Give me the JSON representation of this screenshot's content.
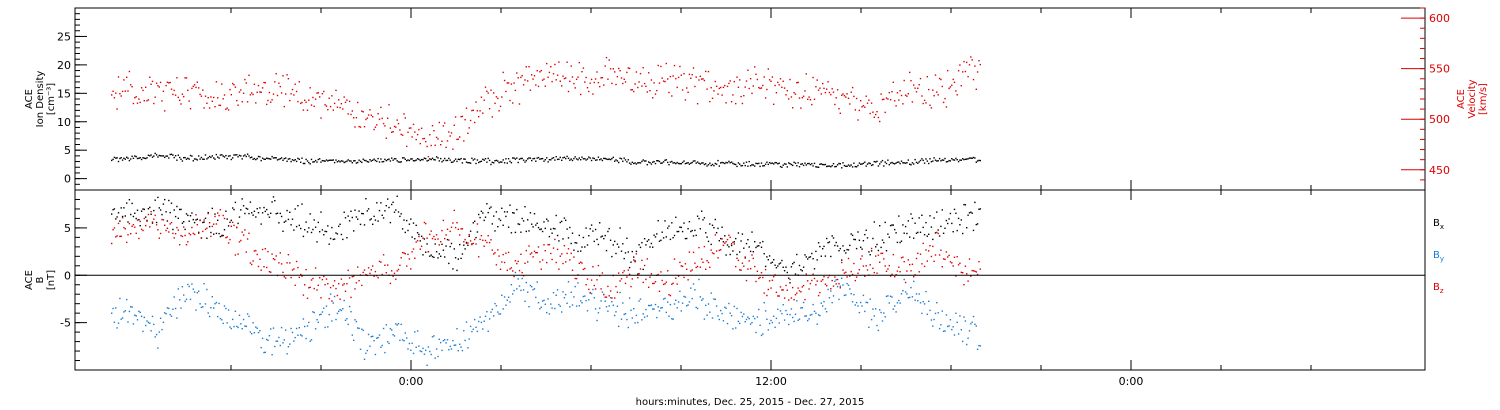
{
  "chart_data": [
    {
      "type": "scatter",
      "panel": "plasma",
      "title": "",
      "xlabel": "hours:minutes, Dec. 25, 2015 - Dec. 27, 2015",
      "x_tick_labels": [
        "0:00",
        "12:00",
        "0:00"
      ],
      "left_axis": {
        "label_lines": [
          "ACE",
          "Ion Density",
          "[cm⁻³]"
        ],
        "ylim": [
          -2,
          30
        ],
        "ticks": [
          0,
          5,
          10,
          15,
          20,
          25
        ],
        "color": "#000000"
      },
      "right_axis": {
        "label_lines": [
          "ACE",
          "Velocity",
          "[km/s]"
        ],
        "ylim": [
          430,
          610
        ],
        "ticks": [
          450,
          500,
          550,
          600
        ],
        "color": "#dd0000"
      },
      "series": [
        {
          "axis": "left",
          "color": "#000000",
          "x": [
            -9.5,
            -8.5,
            -7.5,
            -6.5,
            -5.5,
            -4.5,
            -3.5,
            -2.5,
            -1.5,
            -0.5,
            0.5,
            1.5,
            2.5,
            3.5,
            4.5,
            5.5,
            6.5,
            7.5,
            8.5,
            9.5,
            10.5,
            11.5,
            12.5,
            13.5,
            14.5,
            15.5,
            16.5,
            17.5,
            18.5
          ],
          "values": [
            3.5,
            4.2,
            3.6,
            3.9,
            4.0,
            3.6,
            3.3,
            3.2,
            3.3,
            3.3,
            3.5,
            3.3,
            3.1,
            3.4,
            3.6,
            3.7,
            3.5,
            3.0,
            3.0,
            2.8,
            2.9,
            2.7,
            2.6,
            2.5,
            2.6,
            2.8,
            3.0,
            3.4,
            3.5
          ]
        },
        {
          "axis": "right",
          "color": "#dd0000",
          "x": [
            -9.5,
            -8.5,
            -7.5,
            -6.5,
            -5.5,
            -4.5,
            -3.5,
            -2.5,
            -1.5,
            -0.5,
            0.5,
            1.5,
            2.5,
            3.5,
            4.5,
            5.5,
            6.5,
            7.5,
            8.5,
            9.5,
            10.5,
            11.5,
            12.5,
            13.5,
            14.5,
            15.5,
            16.5,
            17.5,
            18.5
          ],
          "values": [
            528,
            525,
            528,
            520,
            530,
            532,
            525,
            515,
            500,
            495,
            480,
            490,
            520,
            535,
            545,
            540,
            545,
            538,
            540,
            535,
            530,
            535,
            530,
            525,
            518,
            512,
            532,
            525,
            548
          ]
        }
      ]
    },
    {
      "type": "scatter",
      "panel": "magnetic",
      "title": "",
      "xlabel": "hours:minutes, Dec. 25, 2015 - Dec. 27, 2015",
      "x_tick_labels": [
        "0:00",
        "12:00",
        "0:00"
      ],
      "left_axis": {
        "label_lines": [
          "ACE",
          "B",
          "[nT]"
        ],
        "ylim": [
          -10,
          9
        ],
        "ticks": [
          -5,
          0,
          5
        ],
        "color": "#000000"
      },
      "legend": {
        "placement": "right",
        "entries": [
          {
            "main": "B",
            "sub": "x",
            "color": "#000000"
          },
          {
            "main": "B",
            "sub": "y",
            "color": "#1a7bd4"
          },
          {
            "main": "B",
            "sub": "z",
            "color": "#dd0000"
          }
        ]
      },
      "series": [
        {
          "axis": "left",
          "color": "#000000",
          "x": [
            -9.5,
            -8.5,
            -7.5,
            -6.5,
            -5.5,
            -4.5,
            -3.5,
            -2.5,
            -1.5,
            -0.5,
            0.5,
            1.5,
            2.5,
            3.5,
            4.5,
            5.5,
            6.5,
            7.5,
            8.5,
            9.5,
            10.5,
            11.5,
            12.5,
            13.5,
            14.5,
            15.5,
            16.5,
            17.5,
            18.5
          ],
          "values": [
            6.5,
            7.0,
            6.0,
            5.0,
            6.5,
            7.0,
            5.5,
            4.5,
            6.5,
            7.0,
            3.0,
            1.5,
            6.5,
            6.0,
            5.5,
            4.0,
            4.0,
            2.0,
            5.0,
            5.5,
            4.0,
            3.0,
            0.0,
            2.5,
            3.5,
            4.0,
            5.0,
            5.5,
            6.0
          ]
        },
        {
          "axis": "left",
          "color": "#1a7bd4",
          "x": [
            -9.5,
            -8.5,
            -7.5,
            -6.5,
            -5.5,
            -4.5,
            -3.5,
            -2.5,
            -1.5,
            -0.5,
            0.5,
            1.5,
            2.5,
            3.5,
            4.5,
            5.5,
            6.5,
            7.5,
            8.5,
            9.5,
            10.5,
            11.5,
            12.5,
            13.5,
            14.5,
            15.5,
            16.5,
            17.5,
            18.5
          ],
          "values": [
            -4.0,
            -6.0,
            -2.0,
            -3.0,
            -5.5,
            -7.0,
            -6.0,
            -3.0,
            -7.5,
            -6.0,
            -8.5,
            -7.0,
            -5.0,
            -1.0,
            -3.0,
            -2.0,
            -3.5,
            -4.0,
            -3.0,
            -2.0,
            -4.0,
            -5.0,
            -4.0,
            -3.5,
            -1.0,
            -5.0,
            -1.5,
            -4.0,
            -6.0
          ]
        },
        {
          "axis": "left",
          "color": "#dd0000",
          "x": [
            -9.5,
            -8.5,
            -7.5,
            -6.5,
            -5.5,
            -4.5,
            -3.5,
            -2.5,
            -1.5,
            -0.5,
            0.5,
            1.5,
            2.5,
            3.5,
            4.5,
            5.5,
            6.5,
            7.5,
            8.5,
            9.5,
            10.5,
            11.5,
            12.5,
            13.5,
            14.5,
            15.5,
            16.5,
            17.5,
            18.5
          ],
          "values": [
            5.0,
            5.5,
            4.0,
            6.0,
            3.0,
            1.0,
            -0.5,
            -1.0,
            0.0,
            1.0,
            4.0,
            5.0,
            3.5,
            1.0,
            2.5,
            1.0,
            -1.0,
            0.5,
            -0.5,
            1.5,
            3.5,
            0.0,
            -2.0,
            -1.0,
            0.0,
            1.5,
            0.5,
            3.0,
            0.5
          ]
        }
      ]
    }
  ]
}
